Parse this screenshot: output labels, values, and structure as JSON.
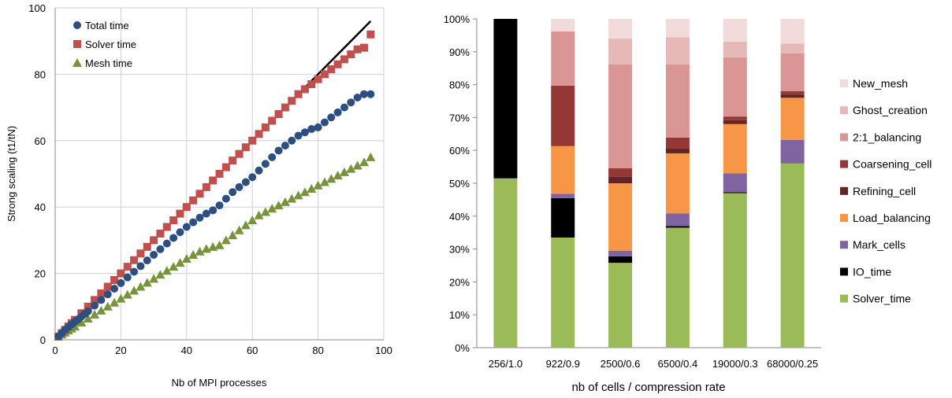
{
  "chart_data": [
    {
      "type": "scatter",
      "xlabel": "Nb of MPI processes",
      "ylabel": "Strong scaling (t1/tN)",
      "xlim": [
        0,
        100
      ],
      "ylim": [
        0,
        100
      ],
      "xticks": [
        "0",
        "20",
        "40",
        "60",
        "80",
        "100"
      ],
      "yticks": [
        "0",
        "20",
        "40",
        "60",
        "80",
        "100"
      ],
      "grid": true,
      "legend_position": "top-left",
      "ideal_line": {
        "x": [
          0,
          96
        ],
        "y": [
          0,
          96
        ],
        "color": "#000000"
      },
      "series": [
        {
          "name": "Total time",
          "marker": "circle",
          "color": "#2c4e80",
          "x": [
            1,
            2,
            3,
            4,
            5,
            6,
            7,
            8,
            9,
            10,
            12,
            14,
            16,
            18,
            20,
            22,
            24,
            26,
            28,
            30,
            32,
            34,
            36,
            38,
            40,
            42,
            44,
            46,
            48,
            50,
            52,
            54,
            56,
            58,
            60,
            62,
            64,
            66,
            68,
            70,
            72,
            74,
            76,
            78,
            80,
            82,
            84,
            86,
            88,
            90,
            92,
            94,
            96
          ],
          "y": [
            1,
            2,
            3,
            3.8,
            4.6,
            5.4,
            6.2,
            7,
            7.8,
            8.6,
            10.3,
            12,
            13.7,
            15.4,
            17.1,
            18.8,
            20.5,
            22.2,
            23.9,
            25.6,
            27.3,
            29,
            30.7,
            32.4,
            34,
            35.4,
            36.8,
            38,
            39,
            40.5,
            42.5,
            44.5,
            46,
            47.5,
            49,
            51,
            53,
            55,
            57,
            58.5,
            60,
            61.5,
            62.5,
            63.5,
            64,
            65.5,
            67,
            68.5,
            70,
            71.5,
            73,
            74,
            74
          ]
        },
        {
          "name": "Solver time",
          "marker": "square",
          "color": "#c0504d",
          "x": [
            1,
            2,
            3,
            4,
            5,
            6,
            8,
            10,
            12,
            14,
            16,
            18,
            20,
            22,
            24,
            26,
            28,
            30,
            32,
            34,
            36,
            38,
            40,
            42,
            44,
            46,
            48,
            50,
            52,
            54,
            56,
            58,
            60,
            62,
            64,
            66,
            68,
            70,
            72,
            74,
            76,
            78,
            80,
            82,
            84,
            86,
            88,
            90,
            92,
            94,
            96
          ],
          "y": [
            1,
            2,
            3,
            4,
            5,
            6,
            8,
            10,
            12,
            14,
            16,
            18,
            20,
            22,
            24,
            26,
            28,
            30,
            32,
            34,
            36,
            38,
            40,
            42,
            44,
            46,
            48,
            50,
            52,
            54,
            56,
            58,
            60,
            62,
            64,
            66,
            68,
            70,
            72,
            74,
            75.5,
            77,
            78.5,
            80,
            81.5,
            83,
            84.5,
            86,
            87.5,
            88,
            92
          ]
        },
        {
          "name": "Mesh time",
          "marker": "triangle",
          "color": "#77933c",
          "x": [
            1,
            2,
            3,
            4,
            5,
            6,
            8,
            10,
            12,
            14,
            16,
            18,
            20,
            22,
            24,
            26,
            28,
            30,
            32,
            34,
            36,
            38,
            40,
            42,
            44,
            46,
            48,
            50,
            52,
            54,
            56,
            58,
            60,
            62,
            64,
            66,
            68,
            70,
            72,
            74,
            76,
            78,
            80,
            82,
            84,
            86,
            88,
            90,
            92,
            94,
            96
          ],
          "y": [
            1,
            1.6,
            2.2,
            2.8,
            3.4,
            4,
            5.2,
            6.4,
            7.6,
            8.8,
            10,
            11.2,
            12.4,
            13.6,
            14.8,
            16,
            17.2,
            18.4,
            19.6,
            20.8,
            22,
            23.2,
            24.4,
            25.6,
            26.6,
            27.4,
            28,
            28.5,
            30,
            31.5,
            33,
            34.5,
            36,
            37.5,
            38.5,
            39.5,
            40.5,
            41.5,
            42.5,
            43.5,
            44.5,
            45.5,
            46.5,
            47.5,
            48.5,
            49.5,
            50.5,
            51.5,
            52.5,
            53.5,
            55
          ]
        }
      ]
    },
    {
      "type": "bar",
      "stacked": true,
      "normalized": true,
      "xlabel": "nb of cells / compression rate",
      "ylabel": "",
      "ylim": [
        0,
        100
      ],
      "yticks": [
        "0%",
        "10%",
        "20%",
        "30%",
        "40%",
        "50%",
        "60%",
        "70%",
        "80%",
        "90%",
        "100%"
      ],
      "legend_position": "right",
      "categories": [
        "256/1.0",
        "922/0.9",
        "2500/0.6",
        "6500/0.4",
        "19000/0.3",
        "68000/0.25"
      ],
      "series": [
        {
          "name": "Solver_time",
          "color": "#9bbb59",
          "values": [
            51.5,
            33.5,
            25.8,
            36.5,
            47,
            56
          ]
        },
        {
          "name": "IO_time",
          "color": "#000000",
          "values": [
            48.5,
            12,
            2,
            0.5,
            0.3,
            0
          ]
        },
        {
          "name": "Mark_cells",
          "color": "#8064a2",
          "values": [
            0,
            1.3,
            1.7,
            3.8,
            5.7,
            7.2
          ]
        },
        {
          "name": "Load_balancing",
          "color": "#f79646",
          "values": [
            0,
            14.5,
            20.5,
            18.3,
            15,
            12.8
          ]
        },
        {
          "name": "Refining_cell",
          "color": "#632523",
          "values": [
            0,
            0,
            2,
            1.6,
            1.2,
            1
          ]
        },
        {
          "name": "Coarsening_cell",
          "color": "#953735",
          "values": [
            0,
            18.4,
            2.6,
            3.2,
            1.1,
            1
          ]
        },
        {
          "name": "2:1_balancing",
          "color": "#d99694",
          "values": [
            0,
            16.5,
            31.6,
            22.3,
            18,
            11.5
          ]
        },
        {
          "name": "Ghost_creation",
          "color": "#e6b9b8",
          "values": [
            0,
            0,
            7.8,
            8.2,
            4.8,
            3
          ]
        },
        {
          "name": "New_mesh",
          "color": "#f2dcdb",
          "values": [
            0,
            3.8,
            6,
            5.6,
            6.9,
            7.5
          ]
        }
      ]
    }
  ]
}
